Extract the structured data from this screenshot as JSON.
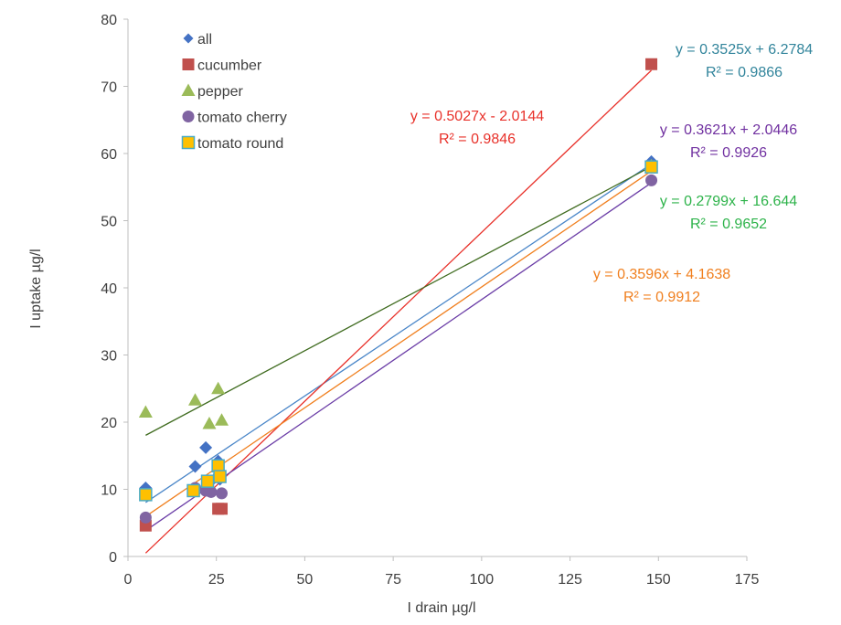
{
  "chart_data": {
    "type": "scatter",
    "xlabel": "I drain  µg/l",
    "ylabel": "I uptake   µg/l",
    "xlim": [
      0,
      175
    ],
    "ylim": [
      0,
      80
    ],
    "x_ticks": [
      "0",
      "25",
      "50",
      "75",
      "100",
      "125",
      "150",
      "175"
    ],
    "y_ticks": [
      "0",
      "10",
      "20",
      "30",
      "40",
      "50",
      "60",
      "70",
      "80"
    ],
    "grid": false,
    "legend_position": "top-left",
    "series": [
      {
        "name": "all",
        "marker": "diamond",
        "color": "#4472C4",
        "trend_color": "#4A86C8",
        "points": [
          [
            5,
            10.2
          ],
          [
            19,
            13.4
          ],
          [
            22,
            16.2
          ],
          [
            23,
            10.1
          ],
          [
            25.5,
            14.2
          ],
          [
            26,
            11.5
          ],
          [
            148,
            58.8
          ]
        ],
        "trendline": {
          "slope": 0.3525,
          "intercept": 6.2784,
          "x_range": [
            5,
            148
          ]
        },
        "equation": "y = 0.3525x + 6.2784",
        "r2": "R² = 0.9866",
        "label_color": "#31849B"
      },
      {
        "name": "cucumber",
        "marker": "square",
        "color": "#C0504D",
        "trend_color": "#E8312A",
        "points": [
          [
            5,
            4.6
          ],
          [
            25.5,
            7.1
          ],
          [
            26.5,
            7.1
          ],
          [
            148,
            73.3
          ]
        ],
        "trendline": {
          "slope": 0.5027,
          "intercept": -2.0144,
          "x_range": [
            5,
            148
          ]
        },
        "equation": "y = 0.5027x - 2.0144",
        "r2": "R² = 0.9846",
        "label_color": "#E8312A"
      },
      {
        "name": "pepper",
        "marker": "triangle",
        "color": "#9BBB59",
        "trend_color": "#3F6B1F",
        "points": [
          [
            5,
            21.5
          ],
          [
            19,
            23.3
          ],
          [
            23,
            19.8
          ],
          [
            25.5,
            25
          ],
          [
            26.5,
            20.3
          ],
          [
            148,
            58.2
          ]
        ],
        "trendline": {
          "slope": 0.2799,
          "intercept": 16.644,
          "x_range": [
            5,
            148
          ]
        },
        "equation": "y = 0.2799x + 16.644",
        "r2": "R² = 0.9652",
        "label_color": "#2DB34A"
      },
      {
        "name": "tomato cherry",
        "marker": "circle",
        "color": "#8064A2",
        "trend_color": "#6A3CA6",
        "points": [
          [
            5,
            5.8
          ],
          [
            19,
            10.2
          ],
          [
            22,
            9.8
          ],
          [
            23.5,
            9.6
          ],
          [
            25.5,
            11.8
          ],
          [
            26.5,
            9.4
          ],
          [
            148,
            56
          ]
        ],
        "trendline": {
          "slope": 0.3621,
          "intercept": 2.0446,
          "x_range": [
            5,
            148
          ]
        },
        "equation": "y = 0.3621x + 2.0446",
        "r2": "R² = 0.9926",
        "label_color": "#7030A0"
      },
      {
        "name": "tomato round",
        "marker": "square-outline",
        "color": "#FFC000",
        "outline": "#4BACC6",
        "trend_color": "#F07F1E",
        "points": [
          [
            5,
            9.2
          ],
          [
            18.5,
            9.8
          ],
          [
            22.5,
            11.2
          ],
          [
            25.5,
            13.5
          ],
          [
            26,
            11.9
          ],
          [
            148,
            58
          ]
        ],
        "trendline": {
          "slope": 0.3596,
          "intercept": 4.1638,
          "x_range": [
            5,
            148
          ]
        },
        "equation": "y = 0.3596x + 4.1638",
        "r2": "R² = 0.9912",
        "label_color": "#F07F1E"
      }
    ]
  }
}
